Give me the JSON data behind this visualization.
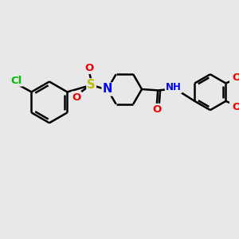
{
  "background_color": "#e8e8e8",
  "bond_color": "#000000",
  "bond_width": 1.8,
  "atom_colors": {
    "Cl": "#00bb00",
    "S": "#bbbb00",
    "N": "#0000ee",
    "O": "#ee0000",
    "H": "#7faabb",
    "C": "#000000"
  },
  "figsize": [
    3.0,
    3.0
  ],
  "dpi": 100
}
